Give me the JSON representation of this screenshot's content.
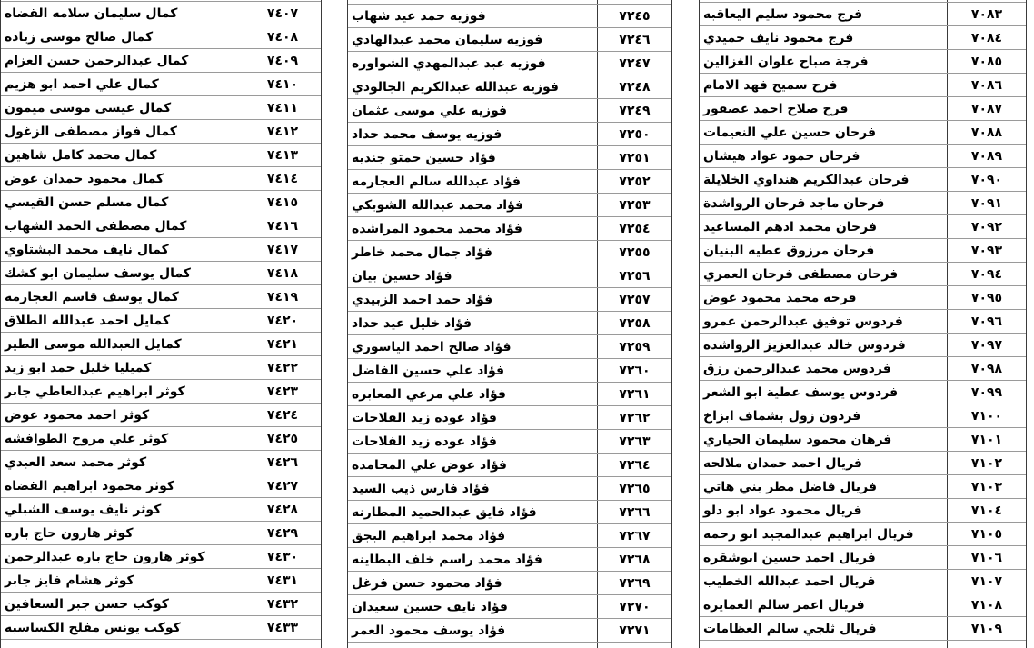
{
  "colors": {
    "background": "#ffffff",
    "text": "#000000",
    "grid_horizontal": "#9a9a9a",
    "grid_vertical": "#3a3a3a"
  },
  "tables": {
    "left": {
      "rows": [
        {
          "name": "كمال سليمان سلامه القضاه",
          "num": "٧٤٠٧"
        },
        {
          "name": "كمال صالح موسى زيادة",
          "num": "٧٤٠٨"
        },
        {
          "name": "كمال عبدالرحمن حسن العزام",
          "num": "٧٤٠٩"
        },
        {
          "name": "كمال علي احمد ابو هزيم",
          "num": "٧٤١٠"
        },
        {
          "name": "كمال عيسى موسى ميمون",
          "num": "٧٤١١"
        },
        {
          "name": "كمال فواز مصطفى الزغول",
          "num": "٧٤١٢"
        },
        {
          "name": "كمال محمد كامل شاهين",
          "num": "٧٤١٣"
        },
        {
          "name": "كمال محمود حمدان عوض",
          "num": "٧٤١٤"
        },
        {
          "name": "كمال مسلم حسن القيسي",
          "num": "٧٤١٥"
        },
        {
          "name": "كمال مصطفى الحمد الشهاب",
          "num": "٧٤١٦"
        },
        {
          "name": "كمال نايف محمد البشتاوي",
          "num": "٧٤١٧"
        },
        {
          "name": "كمال يوسف سليمان ابو كشك",
          "num": "٧٤١٨"
        },
        {
          "name": "كمال يوسف قاسم العجارمه",
          "num": "٧٤١٩"
        },
        {
          "name": "كمايل احمد عبدالله الطلاق",
          "num": "٧٤٢٠"
        },
        {
          "name": "كمايل العبدالله موسى الطير",
          "num": "٧٤٢١"
        },
        {
          "name": "كميليا خليل حمد ابو زيد",
          "num": "٧٤٢٢"
        },
        {
          "name": "كوثر ابراهيم عبدالعاطي جابر",
          "num": "٧٤٢٣"
        },
        {
          "name": "كوثر احمد محمود عوض",
          "num": "٧٤٢٤"
        },
        {
          "name": "كوثر علي مروح الطوافشه",
          "num": "٧٤٢٥"
        },
        {
          "name": "كوثر محمد سعد العبدي",
          "num": "٧٤٢٦"
        },
        {
          "name": "كوثر محمود ابراهيم القضاه",
          "num": "٧٤٢٧"
        },
        {
          "name": "كوثر نايف يوسف الشبلي",
          "num": "٧٤٢٨"
        },
        {
          "name": "كوثر هارون حاج باره",
          "num": "٧٤٢٩"
        },
        {
          "name": "كوثر هارون حاج باره عبدالرحمن",
          "num": "٧٤٣٠"
        },
        {
          "name": "كوثر هشام فايز جابر",
          "num": "٧٤٣١"
        },
        {
          "name": "كوكب حسن جبر السعافين",
          "num": "٧٤٣٢"
        },
        {
          "name": "كوكب يونس مفلح الكساسبه",
          "num": "٧٤٣٣"
        }
      ]
    },
    "middle": {
      "rows": [
        {
          "name": "فوزيه حمد عيد شهاب",
          "num": "٧٢٤٥"
        },
        {
          "name": "فوزيه سليمان محمد عبدالهادي",
          "num": "٧٢٤٦"
        },
        {
          "name": "فوزيه عبد عبدالمهدي الشواوره",
          "num": "٧٢٤٧"
        },
        {
          "name": "فوزيه عبدالله عبدالكريم الجالودي",
          "num": "٧٢٤٨"
        },
        {
          "name": "فوزيه علي موسى عثمان",
          "num": "٧٢٤٩"
        },
        {
          "name": "فوزيه يوسف محمد حداد",
          "num": "٧٢٥٠"
        },
        {
          "name": "فؤاد حسين حمتو جنديه",
          "num": "٧٢٥١"
        },
        {
          "name": "فؤاد عبدالله سالم العجارمه",
          "num": "٧٢٥٢"
        },
        {
          "name": "فؤاد محمد عبدالله الشوبكي",
          "num": "٧٢٥٣"
        },
        {
          "name": "فؤاد محمد محمود المراشده",
          "num": "٧٢٥٤"
        },
        {
          "name": "فؤاد جمال محمد خاطر",
          "num": "٧٢٥٥"
        },
        {
          "name": "فؤاد حسين بيان",
          "num": "٧٢٥٦"
        },
        {
          "name": "فؤاد حمد احمد الزبيدي",
          "num": "٧٢٥٧"
        },
        {
          "name": "فؤاد خليل عيد حداد",
          "num": "٧٢٥٨"
        },
        {
          "name": "فؤاد صالح احمد الياسوري",
          "num": "٧٢٥٩"
        },
        {
          "name": "فؤاد علي حسين الفاضل",
          "num": "٧٢٦٠"
        },
        {
          "name": "فؤاد علي مرعي المعابره",
          "num": "٧٢٦١"
        },
        {
          "name": "فؤاد عوده زيد الفلاحات",
          "num": "٧٢٦٢"
        },
        {
          "name": "فؤاد عوده زيد الفلاحات",
          "num": "٧٢٦٣"
        },
        {
          "name": "فؤاد عوض علي المحامده",
          "num": "٧٢٦٤"
        },
        {
          "name": "فؤاد فارس ذيب السيد",
          "num": "٧٢٦٥"
        },
        {
          "name": "فؤاد فايق عبدالحميد المطارنه",
          "num": "٧٢٦٦"
        },
        {
          "name": "فؤاد محمد ابراهيم البجق",
          "num": "٧٢٦٧"
        },
        {
          "name": "فؤاد محمد راسم خلف البطاينه",
          "num": "٧٢٦٨"
        },
        {
          "name": "فؤاد محمود حسن فرغل",
          "num": "٧٢٦٩"
        },
        {
          "name": "فؤاد نايف حسين سعيدان",
          "num": "٧٢٧٠"
        },
        {
          "name": "فؤاد يوسف محمود العمر",
          "num": "٧٢٧١"
        }
      ]
    },
    "right": {
      "rows": [
        {
          "name": "فرج محمود سليم اليعاقبه",
          "num": "٧٠٨٣"
        },
        {
          "name": "فرج محمود نايف حميدي",
          "num": "٧٠٨٤"
        },
        {
          "name": "فرجة صباح علوان الغزالين",
          "num": "٧٠٨٥"
        },
        {
          "name": "فرح سميح فهد الامام",
          "num": "٧٠٨٦"
        },
        {
          "name": "فرح صلاح احمد عصفور",
          "num": "٧٠٨٧"
        },
        {
          "name": "فرحان حسين علي النعيمات",
          "num": "٧٠٨٨"
        },
        {
          "name": "فرحان حمود عواد هيشان",
          "num": "٧٠٨٩"
        },
        {
          "name": "فرحان عبدالكريم هنداوي الخلايلة",
          "num": "٧٠٩٠"
        },
        {
          "name": "فرحان ماجد فرحان الرواشدة",
          "num": "٧٠٩١"
        },
        {
          "name": "فرحان محمد ادهم المساعيد",
          "num": "٧٠٩٢"
        },
        {
          "name": "فرحان مرزوق عطيه البنيان",
          "num": "٧٠٩٣"
        },
        {
          "name": "فرحان مصطفى فرحان العمري",
          "num": "٧٠٩٤"
        },
        {
          "name": "فرحه محمد محمود عوض",
          "num": "٧٠٩٥"
        },
        {
          "name": "فردوس توفيق عبدالرحمن عمرو",
          "num": "٧٠٩٦"
        },
        {
          "name": "فردوس خالد عبدالعزيز الرواشده",
          "num": "٧٠٩٧"
        },
        {
          "name": "فردوس محمد عبدالرحمن رزق",
          "num": "٧٠٩٨"
        },
        {
          "name": "فردوس يوسف عطية ابو الشعر",
          "num": "٧٠٩٩"
        },
        {
          "name": "فردون زول بشماف ابزاخ",
          "num": "٧١٠٠"
        },
        {
          "name": "فرهان محمود سليمان الحياري",
          "num": "٧١٠١"
        },
        {
          "name": "فريال احمد حمدان ملالحه",
          "num": "٧١٠٢"
        },
        {
          "name": "فريال فاضل مطر بني هاتي",
          "num": "٧١٠٣"
        },
        {
          "name": "فريال محمود عواد ابو دلو",
          "num": "٧١٠٤"
        },
        {
          "name": "فريال ابراهيم عبدالمجيد ابو رحمه",
          "num": "٧١٠٥"
        },
        {
          "name": "فريال احمد حسين ابوشقره",
          "num": "٧١٠٦"
        },
        {
          "name": "فريال احمد عبدالله الخطيب",
          "num": "٧١٠٧"
        },
        {
          "name": "فريال اعمر سالم العمايرة",
          "num": "٧١٠٨"
        },
        {
          "name": "فريال ثلجي سالم العظامات",
          "num": "٧١٠٩"
        }
      ]
    }
  }
}
